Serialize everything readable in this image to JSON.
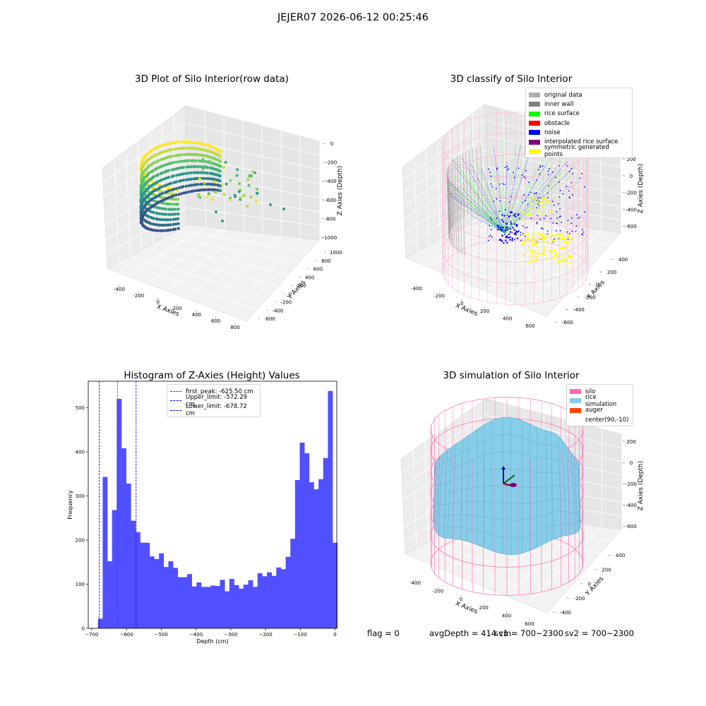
{
  "figure": {
    "suptitle": "JEJER07 2026-06-12 00:25:46",
    "footer": {
      "flag": "flag = 0",
      "avg_depth": "avgDepth = 414 cm",
      "sv1": "sv1 = 700~2300",
      "sv2": "sv2 = 700~2300"
    }
  },
  "chart_data": [
    {
      "type": "scatter3d",
      "title": "3D Plot of Silo Interior(row data)",
      "xlabel": "X Axies",
      "ylabel": "Y Axies",
      "zlabel": "Z Axies (Depth)",
      "xticks": [
        -400,
        -200,
        0,
        200,
        400,
        600,
        800
      ],
      "yticks": [
        -600,
        -400,
        -200,
        0,
        200,
        400,
        600,
        800,
        1000
      ],
      "zticks": [
        0,
        -200,
        -400,
        -600,
        -800,
        -1000
      ],
      "colormap": "viridis"
    },
    {
      "type": "scatter3d",
      "title": "3D classify of Silo Interior",
      "xlabel": "X Axies",
      "ylabel": "Y Axies",
      "zlabel": "Z Axies (Depth)",
      "xticks": [
        -400,
        -200,
        0,
        200,
        400,
        600
      ],
      "yticks": [
        -600,
        -400,
        -200,
        0,
        200,
        400
      ],
      "zticks": [
        200,
        0,
        -200,
        -400,
        -600
      ],
      "legend_position": "top-right",
      "legend": [
        {
          "label": "original data",
          "color": "#b0b0b0"
        },
        {
          "label": "inner wall",
          "color": "#808080"
        },
        {
          "label": "rice surface",
          "color": "#00ff00"
        },
        {
          "label": "obstacle",
          "color": "#ff0000"
        },
        {
          "label": "noise",
          "color": "#0000ff"
        },
        {
          "label": "interpolated rice surface",
          "color": "#800080"
        },
        {
          "label": "symmetric generated points",
          "color": "#ffff00"
        }
      ]
    },
    {
      "type": "bar",
      "title": "Histogram of Z-Axies (Height) Values",
      "xlabel": "Depth (cm)",
      "ylabel": "Frequency",
      "xlim": [
        -710,
        5
      ],
      "ylim": [
        0,
        560
      ],
      "xticks": [
        -700,
        -600,
        -500,
        -400,
        -300,
        -200,
        -100,
        0
      ],
      "yticks": [
        0,
        100,
        200,
        300,
        400,
        500
      ],
      "bin_start": -682,
      "bin_width": 13.5,
      "values": [
        22,
        343,
        152,
        268,
        520,
        408,
        328,
        244,
        218,
        194,
        194,
        163,
        157,
        170,
        139,
        152,
        137,
        116,
        116,
        123,
        95,
        104,
        94,
        94,
        97,
        96,
        110,
        84,
        112,
        98,
        90,
        99,
        109,
        94,
        125,
        118,
        127,
        119,
        138,
        134,
        162,
        203,
        336,
        421,
        397,
        331,
        315,
        338,
        386,
        538,
        194
      ],
      "bar_color": "#5050ff",
      "legend_position": "top-center",
      "lines": [
        {
          "label": "first_peak: -625.50 cm",
          "x": -625.5,
          "color": "#ff0000"
        },
        {
          "label": "Upper_limit: -572.29 cm",
          "x": -572.29,
          "color": "#0000c8"
        },
        {
          "label": "Lower_limit: -678.72 cm",
          "x": -678.72,
          "color": "#0000c8"
        }
      ]
    },
    {
      "type": "surface3d",
      "title": "3D simulation of Silo Interior",
      "xlabel": "X Axies",
      "ylabel": "Y Axies",
      "zlabel": "Z Axies (Depth)",
      "xticks": [
        -400,
        -200,
        0,
        200,
        400,
        600
      ],
      "yticks": [
        -400,
        -200,
        0,
        200,
        400
      ],
      "zticks": [
        200,
        0,
        -200,
        -400,
        -600
      ],
      "legend_position": "top-right",
      "legend": [
        {
          "label": "silo",
          "color": "#ff69b4"
        },
        {
          "label": "rice simulation",
          "color": "#87ceeb"
        },
        {
          "label": "auger",
          "color": "#ff4500"
        },
        {
          "label": "center(90,-10)",
          "color": "#ffffff"
        }
      ]
    }
  ]
}
